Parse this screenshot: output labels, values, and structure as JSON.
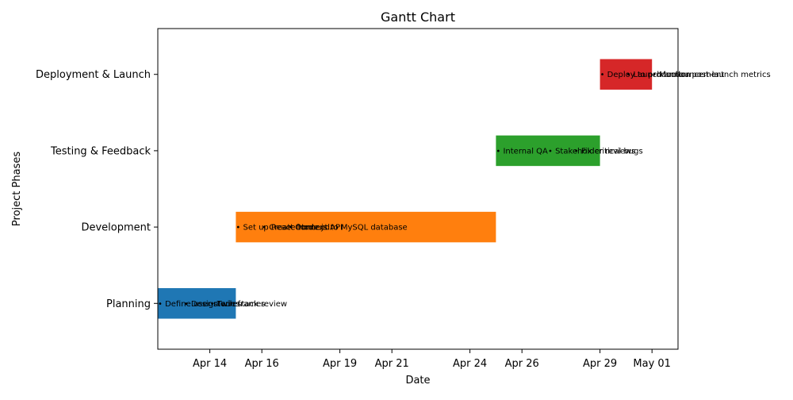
{
  "chart_data": {
    "type": "gantt",
    "title": "Gantt Chart",
    "xlabel": "Date",
    "ylabel": "Project Phases",
    "x_ticks": [
      "Apr 14",
      "Apr 16",
      "Apr 19",
      "Apr 21",
      "Apr 24",
      "Apr 26",
      "Apr 29",
      "May 01"
    ],
    "x_tick_dates": [
      "2024-04-14",
      "2024-04-16",
      "2024-04-19",
      "2024-04-21",
      "2024-04-24",
      "2024-04-26",
      "2024-04-29",
      "2024-05-01"
    ],
    "xlim": [
      "2024-04-12",
      "2024-05-02"
    ],
    "grid": false,
    "phases": [
      {
        "name": "Planning",
        "start": "2024-04-12",
        "end": "2024-04-15",
        "color": "#1f77b4",
        "tasks": [
          {
            "label": "• Define user stories",
            "date": "2024-04-12"
          },
          {
            "label": "• Design wireframes",
            "date": "2024-04-13"
          },
          {
            "label": "• Tech stack review",
            "date": "2024-04-14"
          }
        ]
      },
      {
        "name": "Development",
        "start": "2024-04-15",
        "end": "2024-04-25",
        "color": "#ff7f0e",
        "tasks": [
          {
            "label": "• Set up React frontend",
            "date": "2024-04-15"
          },
          {
            "label": "• Create Node.js API",
            "date": "2024-04-16"
          },
          {
            "label": "• Connect to MySQL database",
            "date": "2024-04-17"
          }
        ]
      },
      {
        "name": "Testing & Feedback",
        "start": "2024-04-25",
        "end": "2024-04-29",
        "color": "#2ca02c",
        "tasks": [
          {
            "label": "• Internal QA",
            "date": "2024-04-25"
          },
          {
            "label": "• Stakeholder reviews",
            "date": "2024-04-27"
          },
          {
            "label": "• Fix critical bugs",
            "date": "2024-04-28"
          }
        ]
      },
      {
        "name": "Deployment & Launch",
        "start": "2024-04-29",
        "end": "2024-05-01",
        "color": "#d62728",
        "tasks": [
          {
            "label": "• Deploy to production",
            "date": "2024-04-29"
          },
          {
            "label": "• Launch announcement",
            "date": "2024-04-30"
          },
          {
            "label": "• Monitor post-launch metrics",
            "date": "2024-05-01"
          }
        ]
      }
    ]
  }
}
